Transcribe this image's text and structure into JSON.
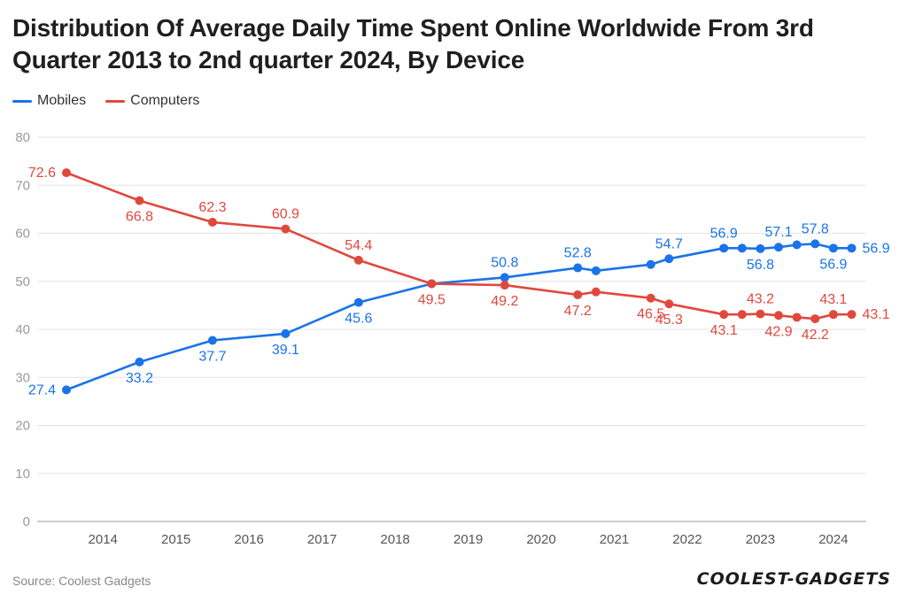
{
  "chart_data": {
    "type": "line",
    "title": "Distribution Of Average Daily Time Spent Online Worldwide From 3rd Quarter 2013 to 2nd quarter 2024, By Device",
    "xlabel": "",
    "ylabel": "",
    "ylim": [
      0,
      80
    ],
    "yticks": [
      "0",
      "10",
      "20",
      "30",
      "40",
      "50",
      "60",
      "70",
      "80"
    ],
    "xlim": [
      2013.1,
      2024.45
    ],
    "xticks": [
      {
        "label": "2014",
        "x": 2014
      },
      {
        "label": "2015",
        "x": 2015
      },
      {
        "label": "2016",
        "x": 2016
      },
      {
        "label": "2017",
        "x": 2017
      },
      {
        "label": "2018",
        "x": 2018
      },
      {
        "label": "2019",
        "x": 2019
      },
      {
        "label": "2020",
        "x": 2020
      },
      {
        "label": "2021",
        "x": 2021
      },
      {
        "label": "2022",
        "x": 2022
      },
      {
        "label": "2023",
        "x": 2023
      },
      {
        "label": "2024",
        "x": 2024
      }
    ],
    "grid": true,
    "legend_position": "top-left",
    "series": [
      {
        "name": "Mobiles",
        "color": "#1a73e8",
        "points": [
          {
            "x": 2013.5,
            "y": 27.4,
            "label": "27.4",
            "label_pos": "left"
          },
          {
            "x": 2014.5,
            "y": 33.2,
            "label": "33.2",
            "label_pos": "below"
          },
          {
            "x": 2015.5,
            "y": 37.7,
            "label": "37.7",
            "label_pos": "below"
          },
          {
            "x": 2016.5,
            "y": 39.1,
            "label": "39.1",
            "label_pos": "below"
          },
          {
            "x": 2017.5,
            "y": 45.6,
            "label": "45.6",
            "label_pos": "below"
          },
          {
            "x": 2018.5,
            "y": 49.5,
            "label": "",
            "label_pos": "none"
          },
          {
            "x": 2019.5,
            "y": 50.8,
            "label": "50.8",
            "label_pos": "above"
          },
          {
            "x": 2020.5,
            "y": 52.8,
            "label": "52.8",
            "label_pos": "above"
          },
          {
            "x": 2020.75,
            "y": 52.2,
            "label": "",
            "label_pos": "none"
          },
          {
            "x": 2021.5,
            "y": 53.5,
            "label": "",
            "label_pos": "none"
          },
          {
            "x": 2021.75,
            "y": 54.7,
            "label": "54.7",
            "label_pos": "above"
          },
          {
            "x": 2022.5,
            "y": 56.9,
            "label": "56.9",
            "label_pos": "above"
          },
          {
            "x": 2022.75,
            "y": 56.9,
            "label": "",
            "label_pos": "none"
          },
          {
            "x": 2023.0,
            "y": 56.8,
            "label": "56.8",
            "label_pos": "below"
          },
          {
            "x": 2023.25,
            "y": 57.1,
            "label": "57.1",
            "label_pos": "above"
          },
          {
            "x": 2023.5,
            "y": 57.6,
            "label": "",
            "label_pos": "none"
          },
          {
            "x": 2023.75,
            "y": 57.8,
            "label": "57.8",
            "label_pos": "above"
          },
          {
            "x": 2024.0,
            "y": 56.9,
            "label": "56.9",
            "label_pos": "below"
          },
          {
            "x": 2024.25,
            "y": 56.9,
            "label": "56.9",
            "label_pos": "right"
          }
        ]
      },
      {
        "name": "Computers",
        "color": "#e0483e",
        "points": [
          {
            "x": 2013.5,
            "y": 72.6,
            "label": "72.6",
            "label_pos": "left"
          },
          {
            "x": 2014.5,
            "y": 66.8,
            "label": "66.8",
            "label_pos": "below"
          },
          {
            "x": 2015.5,
            "y": 62.3,
            "label": "62.3",
            "label_pos": "above"
          },
          {
            "x": 2016.5,
            "y": 60.9,
            "label": "60.9",
            "label_pos": "above"
          },
          {
            "x": 2017.5,
            "y": 54.4,
            "label": "54.4",
            "label_pos": "above"
          },
          {
            "x": 2018.5,
            "y": 49.5,
            "label": "49.5",
            "label_pos": "below"
          },
          {
            "x": 2019.5,
            "y": 49.2,
            "label": "49.2",
            "label_pos": "below"
          },
          {
            "x": 2020.5,
            "y": 47.2,
            "label": "47.2",
            "label_pos": "below"
          },
          {
            "x": 2020.75,
            "y": 47.8,
            "label": "",
            "label_pos": "none"
          },
          {
            "x": 2021.5,
            "y": 46.5,
            "label": "46.5",
            "label_pos": "below"
          },
          {
            "x": 2021.75,
            "y": 45.3,
            "label": "45.3",
            "label_pos": "below"
          },
          {
            "x": 2022.5,
            "y": 43.1,
            "label": "43.1",
            "label_pos": "below"
          },
          {
            "x": 2022.75,
            "y": 43.1,
            "label": "",
            "label_pos": "none"
          },
          {
            "x": 2023.0,
            "y": 43.2,
            "label": "43.2",
            "label_pos": "above"
          },
          {
            "x": 2023.25,
            "y": 42.9,
            "label": "42.9",
            "label_pos": "below"
          },
          {
            "x": 2023.5,
            "y": 42.5,
            "label": "",
            "label_pos": "none"
          },
          {
            "x": 2023.75,
            "y": 42.2,
            "label": "42.2",
            "label_pos": "below"
          },
          {
            "x": 2024.0,
            "y": 43.1,
            "label": "43.1",
            "label_pos": "above"
          },
          {
            "x": 2024.25,
            "y": 43.1,
            "label": "43.1",
            "label_pos": "right"
          }
        ]
      }
    ]
  },
  "legend": {
    "mobiles": "Mobiles",
    "computers": "Computers",
    "mobiles_color": "#1a73e8",
    "computers_color": "#e0483e"
  },
  "footer": {
    "source": "Source: Coolest Gadgets",
    "logo_text": "COOLEST-GADGETS"
  }
}
